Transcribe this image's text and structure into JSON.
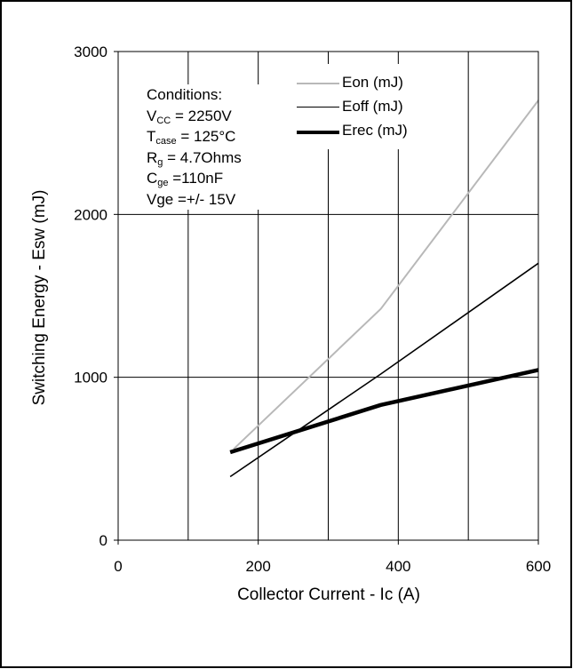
{
  "chart_data": {
    "type": "line",
    "title": "",
    "xlabel": "Collector Current - Ic (A)",
    "ylabel": "Switching Energy - Esw (mJ)",
    "xlim": [
      0,
      600
    ],
    "ylim": [
      0,
      3000
    ],
    "xticks": [
      "0",
      "200",
      "400",
      "600"
    ],
    "yticks": [
      "0",
      "1000",
      "2000",
      "3000"
    ],
    "grid": true,
    "legend_position": "top-right",
    "series": [
      {
        "name": "Eon (mJ)",
        "color": "#b8b8b8",
        "x": [
          165,
          375,
          600
        ],
        "y": [
          560,
          1420,
          2700
        ]
      },
      {
        "name": "Eoff (mJ)",
        "color": "#000000",
        "x": [
          160,
          375,
          600
        ],
        "y": [
          390,
          1020,
          1700
        ]
      },
      {
        "name": "Erec (mJ)",
        "color": "#000000",
        "x": [
          160,
          375,
          600
        ],
        "y": [
          540,
          830,
          1045
        ]
      }
    ],
    "conditions": {
      "heading": "Conditions:",
      "lines": [
        {
          "base": "V",
          "sub": "CC",
          "rest": " = 2250V"
        },
        {
          "base": "T",
          "sub": "case",
          "rest": " = 125°C"
        },
        {
          "base": "R",
          "sub": "g",
          "rest": " = 4.7Ohms"
        },
        {
          "base": "C",
          "sub": "ge",
          "rest": " =110nF"
        },
        {
          "base": "Vge =+/- 15V",
          "sub": "",
          "rest": ""
        }
      ]
    }
  }
}
